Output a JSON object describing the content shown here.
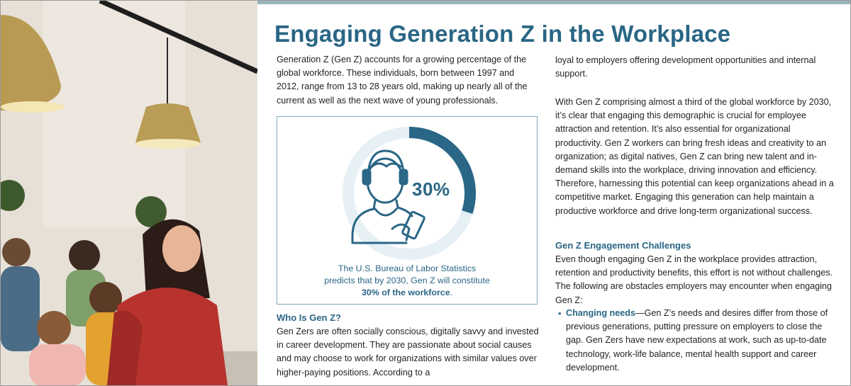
{
  "document": {
    "title": "Engaging Generation Z in the Workplace",
    "intro": "Generation Z (Gen Z) accounts for a growing percentage of the global workforce. These individuals, born between 1997 and 2012, range from 13 to 28 years old, making up nearly all of the current as well as the next wave of young professionals.",
    "infobox": {
      "percent_label": "30%",
      "percent_value": 30,
      "caption_line1": "The U.S. Bureau of Labor Statistics",
      "caption_line2": "predicts that by 2030, Gen Z will constitute",
      "caption_emphasis": "30% of the workforce",
      "caption_end": "."
    },
    "who_heading": "Who Is Gen Z?",
    "who_text": "Gen Zers are often socially conscious, digitally savvy and invested in career development. They are passionate about social causes and may choose to work for organizations with similar values over higher-paying positions. According to a",
    "right_para1": "loyal to employers offering development opportunities and internal support.",
    "right_para2": "With Gen Z comprising almost a third of the global workforce by 2030, it’s clear that engaging this demographic is crucial for employee attraction and retention. It’s also essential for organizational productivity. Gen Z workers can bring fresh ideas and creativity to an organization; as digital natives, Gen Z can bring new talent and in-demand skills into the workplace, driving innovation and efficiency. Therefore, harnessing this potential can keep organizations ahead in a competitive market. Engaging this generation can help maintain a productive workforce and drive long-term organizational success.",
    "challenges_heading": "Gen Z Engagement Challenges",
    "challenges_text": "Even though engaging Gen Z in the workplace provides attraction, retention and productivity benefits, this effort is not without challenges. The following are obstacles employers may encounter when engaging Gen Z:",
    "bullets": [
      {
        "lead": "Changing needs",
        "dash": "—",
        "text": "Gen Z’s needs and desires differ from those of previous generations, putting pressure on employers to close the gap. Gen Zers have new expectations at work, such as up-to-date technology, work-life balance, mental health support and career development."
      }
    ]
  },
  "colors": {
    "accent": "#2a6685",
    "ring_background": "#e6f0f5",
    "box_border": "#7fa7ba"
  },
  "icons": {
    "infobox_icon": "person-with-headset-and-clipboard-icon"
  }
}
